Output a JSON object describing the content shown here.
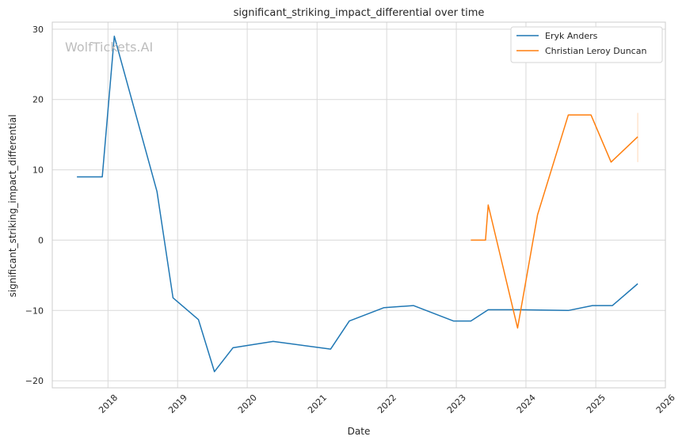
{
  "chart_data": {
    "type": "line",
    "title": "significant_striking_impact_differential over time",
    "xlabel": "Date",
    "ylabel": "significant_striking_impact_differential",
    "watermark": "WolfTickets.AI",
    "grid": true,
    "legend_position": "top-right",
    "x_ticks": [
      "2018",
      "2019",
      "2020",
      "2021",
      "2022",
      "2023",
      "2024",
      "2025",
      "2026"
    ],
    "y_ticks": [
      -20,
      -10,
      0,
      10,
      20,
      30
    ],
    "xlim": [
      "2017-03-15",
      "2026-01-01"
    ],
    "ylim": [
      -21,
      31
    ],
    "series": [
      {
        "name": "Eryk Anders",
        "color": "#1f77b4",
        "points": [
          [
            "2017-07-22",
            9.0
          ],
          [
            "2017-12-02",
            9.0
          ],
          [
            "2018-02-03",
            29.0
          ],
          [
            "2018-09-15",
            6.9
          ],
          [
            "2018-12-08",
            -8.2
          ],
          [
            "2019-04-20",
            -11.3
          ],
          [
            "2019-07-13",
            -18.7
          ],
          [
            "2019-10-18",
            -15.3
          ],
          [
            "2020-05-16",
            -14.4
          ],
          [
            "2021-03-13",
            -15.5
          ],
          [
            "2021-06-19",
            -11.5
          ],
          [
            "2021-12-18",
            -9.6
          ],
          [
            "2022-05-21",
            -9.3
          ],
          [
            "2022-12-17",
            -11.5
          ],
          [
            "2023-03-18",
            -11.5
          ],
          [
            "2023-06-17",
            -9.9
          ],
          [
            "2023-12-02",
            -9.9
          ],
          [
            "2024-08-10",
            -10.0
          ],
          [
            "2024-12-14",
            -9.3
          ],
          [
            "2025-03-29",
            -9.3
          ],
          [
            "2025-08-09",
            -6.2
          ]
        ]
      },
      {
        "name": "Christian Leroy Duncan",
        "color": "#ff7f0e",
        "points": [
          [
            "2023-03-18",
            0.0
          ],
          [
            "2023-06-03",
            0.0
          ],
          [
            "2023-06-17",
            5.0
          ],
          [
            "2023-11-18",
            -12.5
          ],
          [
            "2024-03-02",
            3.6
          ],
          [
            "2024-08-10",
            17.8
          ],
          [
            "2024-12-07",
            17.8
          ],
          [
            "2025-03-22",
            11.1
          ],
          [
            "2025-08-09",
            14.7
          ]
        ],
        "error_bar": {
          "x": "2025-08-09",
          "low": 11.1,
          "high": 18.1
        }
      }
    ]
  }
}
